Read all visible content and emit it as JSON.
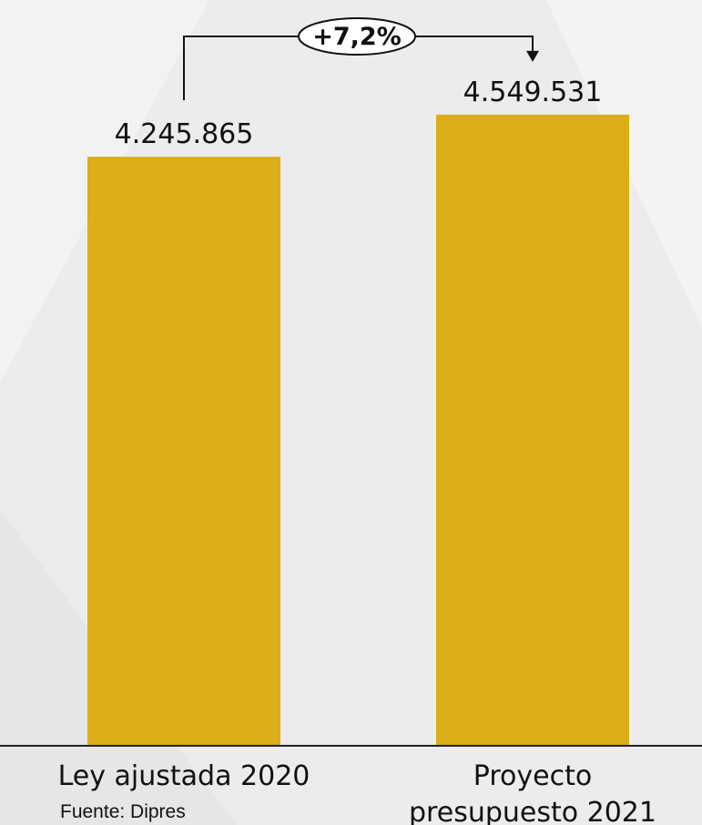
{
  "chart_data": {
    "type": "bar",
    "categories": [
      [
        "Ley ajustada 2020"
      ],
      [
        "Proyecto",
        "presupuesto 2021"
      ]
    ],
    "values": [
      4245865,
      4549531
    ],
    "value_labels": [
      "4.245.865",
      "4.549.531"
    ],
    "bar_color": "#dbad19",
    "change_annotation": "+7,2%",
    "source": "Fuente: Dipres",
    "title": "",
    "xlabel": "",
    "ylabel": ""
  }
}
